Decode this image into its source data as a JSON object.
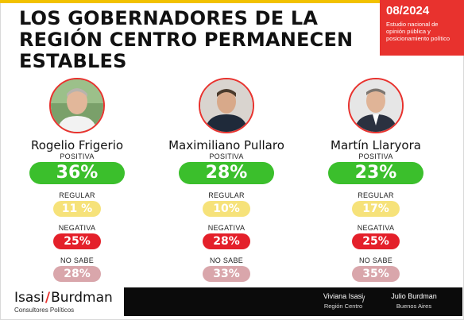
{
  "header": {
    "title": "LOS GOBERNADORES DE LA REGIÓN CENTRO PERMANECEN ESTABLES",
    "badge_date": "08/2024",
    "badge_subtitle": "Estudio nacional de opinión pública y posicionamiento político"
  },
  "colors": {
    "accent": "#e8322e",
    "positive": "#3bbf2c",
    "regular": "#f6e27a",
    "negative": "#e4202a",
    "no_sabe": "#d9a6ab",
    "footer": "#0b0b0b"
  },
  "labels": {
    "positiva": "POSITIVA",
    "regular": "REGULAR",
    "negativa": "NEGATIVA",
    "no_sabe": "NO SABE"
  },
  "governors": [
    {
      "name": "Rogelio Frigerio",
      "positiva": "36%",
      "regular": "11 %",
      "negativa": "25%",
      "no_sabe": "28%"
    },
    {
      "name": "Maximiliano Pullaro",
      "positiva": "28%",
      "regular": "10%",
      "negativa": "28%",
      "no_sabe": "33%"
    },
    {
      "name": "Martín Llaryora",
      "positiva": "23%",
      "regular": "17%",
      "negativa": "25%",
      "no_sabe": "35%"
    }
  ],
  "footer": {
    "brand_left": "Isasi",
    "brand_slash": "/",
    "brand_right": "Burdman",
    "brand_sub": "Consultores Políticos",
    "signatures": [
      {
        "name": "Viviana Isasi",
        "role": "Región Centro"
      },
      {
        "name": "Julio Burdman",
        "role": "Buenos Aires"
      }
    ],
    "separator": "/"
  }
}
